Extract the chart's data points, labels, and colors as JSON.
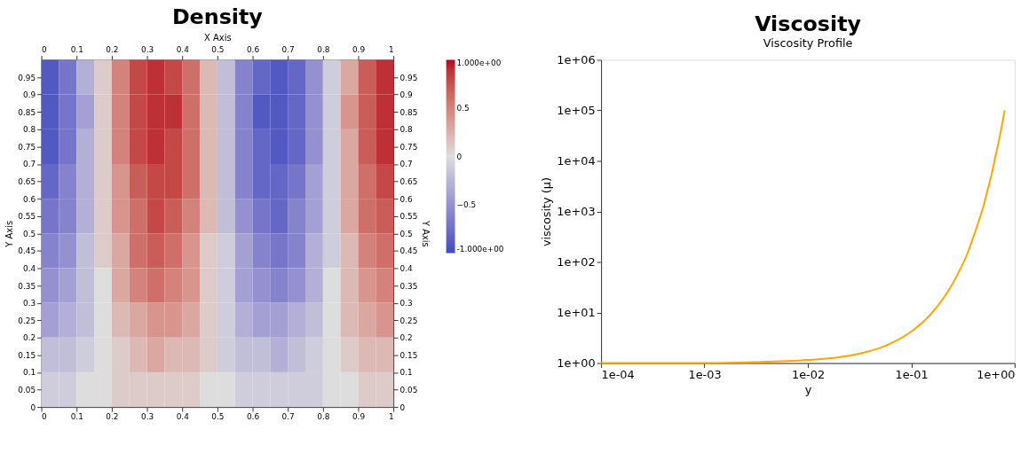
{
  "chart_data": [
    {
      "type": "heatmap",
      "title": "Density",
      "x2label": "X Axis",
      "ylabel": "Y Axis",
      "y2label": "Y Axis",
      "cells": [
        [
          -0.9,
          -0.7,
          -0.3,
          0.1,
          0.5,
          0.8,
          0.9,
          0.8,
          0.6,
          0.2,
          -0.2,
          -0.6,
          -0.8,
          -0.9,
          -0.8,
          -0.5,
          -0.1,
          0.3,
          0.7,
          0.9
        ],
        [
          -0.9,
          -0.7,
          -0.4,
          0.1,
          0.5,
          0.8,
          0.9,
          0.9,
          0.6,
          0.2,
          -0.2,
          -0.6,
          -0.9,
          -0.9,
          -0.8,
          -0.5,
          -0.1,
          0.4,
          0.7,
          0.9
        ],
        [
          -0.9,
          -0.7,
          -0.3,
          0.1,
          0.5,
          0.8,
          0.9,
          0.8,
          0.6,
          0.2,
          -0.2,
          -0.6,
          -0.8,
          -0.9,
          -0.8,
          -0.5,
          -0.1,
          0.3,
          0.7,
          0.9
        ],
        [
          -0.8,
          -0.6,
          -0.3,
          0.1,
          0.4,
          0.7,
          0.8,
          0.8,
          0.6,
          0.2,
          -0.2,
          -0.6,
          -0.8,
          -0.8,
          -0.7,
          -0.4,
          -0.1,
          0.3,
          0.6,
          0.8
        ],
        [
          -0.7,
          -0.6,
          -0.3,
          0.1,
          0.4,
          0.6,
          0.8,
          0.7,
          0.5,
          0.2,
          -0.2,
          -0.5,
          -0.7,
          -0.8,
          -0.6,
          -0.4,
          -0.1,
          0.3,
          0.6,
          0.7
        ],
        [
          -0.6,
          -0.5,
          -0.2,
          0.1,
          0.3,
          0.6,
          0.7,
          0.6,
          0.4,
          0.1,
          -0.1,
          -0.4,
          -0.6,
          -0.7,
          -0.6,
          -0.3,
          -0.1,
          0.2,
          0.5,
          0.6
        ],
        [
          -0.5,
          -0.4,
          -0.2,
          0.0,
          0.3,
          0.5,
          0.6,
          0.5,
          0.4,
          0.1,
          -0.1,
          -0.4,
          -0.5,
          -0.6,
          -0.5,
          -0.3,
          0.0,
          0.2,
          0.4,
          0.5
        ],
        [
          -0.4,
          -0.3,
          -0.2,
          0.0,
          0.2,
          0.3,
          0.4,
          0.4,
          0.3,
          0.1,
          -0.1,
          -0.3,
          -0.4,
          -0.4,
          -0.3,
          -0.2,
          0.0,
          0.2,
          0.3,
          0.4
        ],
        [
          -0.2,
          -0.2,
          -0.1,
          0.0,
          0.1,
          0.2,
          0.3,
          0.2,
          0.2,
          0.1,
          -0.1,
          -0.2,
          -0.2,
          -0.3,
          -0.2,
          -0.1,
          0.0,
          0.1,
          0.2,
          0.2
        ],
        [
          -0.1,
          -0.1,
          0.0,
          0.0,
          0.1,
          0.1,
          0.1,
          0.1,
          0.1,
          0.0,
          0.0,
          -0.1,
          -0.1,
          -0.1,
          -0.1,
          -0.1,
          0.0,
          0.0,
          0.1,
          0.1
        ]
      ],
      "colors": [
        "#3b4cc0",
        "#dddddd",
        "#b40426"
      ],
      "xlim": [
        0,
        1
      ],
      "xticks": [
        0,
        0.1,
        0.2,
        0.3,
        0.4,
        0.5,
        0.6,
        0.7,
        0.8,
        0.9,
        1
      ],
      "x2lim": [
        0,
        1
      ],
      "x2ticks": [
        0,
        0.1,
        0.2,
        0.3,
        0.4,
        0.5,
        0.6,
        0.7,
        0.8,
        0.9,
        1
      ],
      "ylim": [
        0,
        1
      ],
      "yticks": [
        0,
        0.05,
        0.1,
        0.15,
        0.2,
        0.25,
        0.3,
        0.35,
        0.4,
        0.45,
        0.5,
        0.55,
        0.6,
        0.65,
        0.7,
        0.75,
        0.8,
        0.85,
        0.9,
        0.95
      ],
      "y2lim": [
        0,
        1
      ],
      "y2ticks": [
        0,
        0.05,
        0.1,
        0.15,
        0.2,
        0.25,
        0.3,
        0.35,
        0.4,
        0.45,
        0.5,
        0.55,
        0.6,
        0.65,
        0.7,
        0.75,
        0.8,
        0.85,
        0.9,
        0.95
      ],
      "clim": [
        -1,
        1
      ],
      "cticks": [
        {
          "value": -1,
          "label": "-1.000e+00"
        },
        -0.5,
        0,
        0.5,
        {
          "value": 1,
          "label": "1.000e+00"
        }
      ]
    },
    {
      "type": "line",
      "title": "Viscosity",
      "subtitle": "Viscosity Profile",
      "xlabel": "y",
      "ylabel": "viscosity (µ)",
      "log": "xy",
      "grid": false,
      "x": [
        0.0001,
        0.0003,
        0.001,
        0.003,
        0.01,
        0.02,
        0.03,
        0.05,
        0.07,
        0.1,
        0.15,
        0.2,
        0.25,
        0.3,
        0.35,
        0.4,
        0.45,
        0.5,
        0.55,
        0.6,
        0.65,
        0.7,
        0.75,
        0.8
      ],
      "series": [
        {
          "color": "#ffa500",
          "values": [
            1,
            1,
            1,
            1.04,
            1.15,
            1.3,
            1.5,
            2,
            2.7,
            4.2,
            8.7,
            18,
            37,
            75,
            150,
            320,
            650,
            1300,
            2800,
            5600,
            12000,
            24000,
            49000,
            100000
          ]
        }
      ],
      "xlim": [
        0.0001,
        1
      ],
      "xticks": [
        {
          "value": 0.0001,
          "label": "1e-04"
        },
        {
          "value": 0.001,
          "label": "1e-03"
        },
        {
          "value": 0.01,
          "label": "1e-02"
        },
        {
          "value": 0.1,
          "label": "1e-01"
        },
        {
          "value": 1,
          "label": "1e+00"
        }
      ],
      "ylim": [
        1,
        1000000
      ],
      "yticks": [
        {
          "value": 1,
          "label": "1e+00"
        },
        {
          "value": 10,
          "label": "1e+01"
        },
        {
          "value": 100,
          "label": "1e+02"
        },
        {
          "value": 1000,
          "label": "1e+03"
        },
        {
          "value": 10000,
          "label": "1e+04"
        },
        {
          "value": 100000,
          "label": "1e+05"
        },
        {
          "value": 1000000,
          "label": "1e+06"
        }
      ]
    }
  ]
}
